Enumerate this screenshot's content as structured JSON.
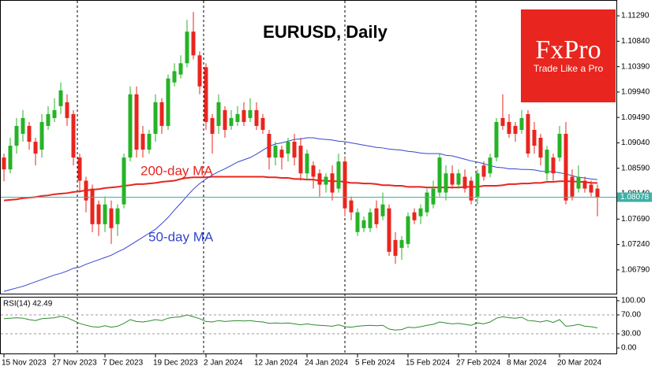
{
  "logo": {
    "name": "FxPro",
    "tagline": "Trade Like a Pro"
  },
  "chart_data": [
    {
      "type": "candlestick",
      "title": "EURUSD, Daily",
      "categories": [
        "15 Nov 2023",
        null,
        null,
        null,
        null,
        null,
        null,
        null,
        "27 Nov 2023",
        null,
        null,
        null,
        null,
        null,
        null,
        null,
        "7 Dec 2023",
        null,
        null,
        null,
        null,
        null,
        null,
        null,
        "19 Dec 2023",
        null,
        null,
        null,
        null,
        null,
        null,
        null,
        "2 Jan 2024",
        null,
        null,
        null,
        null,
        null,
        null,
        null,
        "12 Jan 2024",
        null,
        null,
        null,
        null,
        null,
        null,
        null,
        "24 Jan 2024",
        null,
        null,
        null,
        null,
        null,
        null,
        null,
        "5 Feb 2024",
        null,
        null,
        null,
        null,
        null,
        null,
        null,
        "15 Feb 2024",
        null,
        null,
        null,
        null,
        null,
        null,
        null,
        "27 Feb 2024",
        null,
        null,
        null,
        null,
        null,
        null,
        null,
        "8 Mar 2024",
        null,
        null,
        null,
        null,
        null,
        null,
        null,
        "20 Mar 2024",
        null,
        null,
        null,
        null,
        null,
        null
      ],
      "open": [
        1.0878,
        1.0857,
        1.0899,
        1.092,
        1.0934,
        1.0906,
        1.0892,
        1.0934,
        1.0948,
        1.0969,
        1.0976,
        1.0955,
        1.0878,
        1.0837,
        1.0823,
        1.0795,
        1.076,
        1.0788,
        1.076,
        1.0795,
        1.0878,
        1.099,
        1.092,
        1.0892,
        1.092,
        1.0976,
        1.0934,
        1.1011,
        1.1025,
        1.1045,
        1.1101,
        1.1059,
        1.1038,
        1.0948,
        1.0934,
        1.0962,
        1.0934,
        1.0941,
        1.0962,
        1.0948,
        1.0962,
        1.0948,
        1.092,
        1.0878,
        1.0892,
        1.0885,
        1.0906,
        1.0899,
        1.085,
        1.0864,
        1.085,
        1.083,
        1.085,
        1.0823,
        1.0871,
        1.0802,
        1.0746,
        1.0753,
        1.0753,
        1.0788,
        1.0774,
        1.0788,
        1.0732,
        1.0718,
        1.0725,
        1.0781,
        1.0774,
        1.0781,
        1.0795,
        1.0816,
        1.0816,
        1.085,
        1.083,
        1.0844,
        1.0837,
        1.0809,
        1.0864,
        1.085,
        1.0878,
        1.0948,
        1.0941,
        1.0934,
        1.0927,
        1.0955,
        1.0927,
        1.0913,
        1.085,
        1.0878,
        1.0878,
        1.092,
        1.0844,
        1.0823,
        1.0837,
        1.083,
        1.0823
      ],
      "high": [
        1.0885,
        1.0913,
        1.0948,
        1.0962,
        1.0941,
        1.0913,
        1.0955,
        1.0969,
        1.0983,
        1.1011,
        1.099,
        1.0962,
        1.0885,
        1.0844,
        1.083,
        1.0802,
        1.0809,
        1.0802,
        1.0795,
        1.0885,
        1.1004,
        1.1004,
        1.0934,
        1.0927,
        1.099,
        1.0983,
        1.1025,
        1.1045,
        1.1059,
        1.1122,
        1.1136,
        1.1066,
        1.1045,
        1.0955,
        1.099,
        1.0969,
        1.0962,
        1.0969,
        1.0976,
        1.0983,
        1.0976,
        1.0955,
        1.0927,
        1.0906,
        1.0899,
        1.0913,
        1.092,
        1.0913,
        1.0892,
        1.0871,
        1.0857,
        1.085,
        1.0864,
        1.0885,
        1.0878,
        1.0809,
        1.0788,
        1.0774,
        1.0788,
        1.0802,
        1.0816,
        1.0795,
        1.0746,
        1.0739,
        1.0781,
        1.0788,
        1.0795,
        1.0823,
        1.0837,
        1.0885,
        1.0864,
        1.0864,
        1.0857,
        1.0857,
        1.0844,
        1.0857,
        1.0871,
        1.0885,
        1.0948,
        1.099,
        1.0955,
        1.0941,
        1.0962,
        1.0962,
        1.0941,
        1.092,
        1.0899,
        1.0885,
        1.0934,
        1.0941,
        1.0857,
        1.0864,
        1.0844,
        1.0837,
        1.083
      ],
      "low": [
        1.0836,
        1.085,
        1.0885,
        1.0906,
        1.0892,
        1.0864,
        1.0878,
        1.0927,
        1.0941,
        1.0955,
        1.0934,
        1.0864,
        1.0816,
        1.0781,
        1.0746,
        1.0739,
        1.0746,
        1.0725,
        1.0739,
        1.0788,
        1.0871,
        1.0878,
        1.0878,
        1.0885,
        1.0906,
        1.092,
        1.0927,
        1.1004,
        1.1018,
        1.1038,
        1.1052,
        1.099,
        1.0927,
        1.0885,
        1.092,
        1.0913,
        1.0927,
        1.0934,
        1.0934,
        1.0941,
        1.0927,
        1.092,
        1.0857,
        1.0864,
        1.0857,
        1.0871,
        1.0864,
        1.0837,
        1.0837,
        1.0823,
        1.0809,
        1.0816,
        1.0802,
        1.0816,
        1.0774,
        1.0767,
        1.0739,
        1.0746,
        1.0746,
        1.0753,
        1.0767,
        1.0704,
        1.069,
        1.0697,
        1.0718,
        1.076,
        1.076,
        1.0774,
        1.0788,
        1.0809,
        1.0802,
        1.0823,
        1.0823,
        1.0816,
        1.0795,
        1.0795,
        1.0837,
        1.0843,
        1.0871,
        1.0927,
        1.0913,
        1.0906,
        1.092,
        1.0878,
        1.0885,
        1.0864,
        1.0837,
        1.0837,
        1.0871,
        1.0795,
        1.0802,
        1.0816,
        1.0816,
        1.0809,
        1.0774
      ],
      "close": [
        1.0857,
        1.0899,
        1.0934,
        1.0948,
        1.0906,
        1.0885,
        1.0941,
        1.0955,
        1.0962,
        1.0997,
        1.0948,
        1.0878,
        1.0837,
        1.0802,
        1.076,
        1.076,
        1.0795,
        1.0753,
        1.0788,
        1.0878,
        1.099,
        1.0892,
        1.0892,
        1.092,
        1.0976,
        1.0934,
        1.1018,
        1.1031,
        1.1045,
        1.1101,
        1.1059,
        1.1004,
        1.0941,
        1.092,
        1.0976,
        1.0927,
        1.0948,
        1.0955,
        1.0941,
        1.0962,
        1.0934,
        1.0927,
        1.0878,
        1.0899,
        1.0878,
        1.0906,
        1.0878,
        1.085,
        1.0885,
        1.0844,
        1.083,
        1.0844,
        1.0816,
        1.0871,
        1.0788,
        1.0781,
        1.0781,
        1.0767,
        1.0781,
        1.076,
        1.0795,
        1.0711,
        1.0704,
        1.0732,
        1.0774,
        1.0767,
        1.0788,
        1.0816,
        1.0823,
        1.0878,
        1.085,
        1.083,
        1.085,
        1.0823,
        1.0802,
        1.085,
        1.0844,
        1.0878,
        1.0941,
        1.0934,
        1.092,
        1.092,
        1.0948,
        1.0885,
        1.0899,
        1.0878,
        1.0892,
        1.085,
        1.092,
        1.0802,
        1.0809,
        1.0844,
        1.0823,
        1.0816,
        1.0808
      ],
      "up_color": "#26b326",
      "down_color": "#e8251e",
      "lines": [
        {
          "name": "200-day MA",
          "color": "#e8251e",
          "values": [
            1.0802,
            1.0803,
            1.0804,
            1.0806,
            1.0807,
            1.0808,
            1.081,
            1.0811,
            1.0813,
            1.0814,
            1.0815,
            1.0817,
            1.0818,
            1.082,
            1.0821,
            1.0822,
            1.0824,
            1.0825,
            1.0826,
            1.0828,
            1.0829,
            1.0831,
            1.0831,
            1.0832,
            1.0833,
            1.0835,
            1.0836,
            1.0837,
            1.084,
            1.0842,
            1.0843,
            1.0843,
            1.0843,
            1.0844,
            1.0844,
            1.0844,
            1.0844,
            1.0844,
            1.0844,
            1.0844,
            1.0844,
            1.0844,
            1.0843,
            1.0843,
            1.0842,
            1.0842,
            1.084,
            1.084,
            1.0839,
            1.0839,
            1.0837,
            1.0837,
            1.0836,
            1.0836,
            1.0835,
            1.0833,
            1.0833,
            1.0832,
            1.0832,
            1.0831,
            1.0829,
            1.0829,
            1.0828,
            1.0828,
            1.0826,
            1.0826,
            1.0826,
            1.0825,
            1.0825,
            1.0825,
            1.0825,
            1.0825,
            1.0825,
            1.0826,
            1.0826,
            1.0826,
            1.0828,
            1.0828,
            1.0828,
            1.0829,
            1.0831,
            1.0831,
            1.0832,
            1.0832,
            1.0833,
            1.0833,
            1.0835,
            1.0835,
            1.0836,
            1.0836,
            1.0836,
            1.0835,
            1.0835,
            1.0833,
            1.0833
          ]
        },
        {
          "name": "50-day MA",
          "color": "#3346cc",
          "values": [
            1.0641,
            1.0644,
            1.0647,
            1.065,
            1.0654,
            1.0658,
            1.0662,
            1.0666,
            1.067,
            1.0673,
            1.0677,
            1.0682,
            1.0684,
            1.0689,
            1.0693,
            1.0697,
            1.0701,
            1.0705,
            1.0711,
            1.0716,
            1.0723,
            1.073,
            1.0737,
            1.0744,
            1.0751,
            1.0761,
            1.0772,
            1.0785,
            1.0797,
            1.081,
            1.0822,
            1.0832,
            1.084,
            1.0847,
            1.0853,
            1.0858,
            1.0864,
            1.087,
            1.0874,
            1.0878,
            1.0884,
            1.0891,
            1.0898,
            1.0902,
            1.0904,
            1.0907,
            1.091,
            1.0911,
            1.0913,
            1.0913,
            1.0911,
            1.091,
            1.0909,
            1.0907,
            1.0906,
            1.0904,
            1.0902,
            1.09,
            1.0898,
            1.0896,
            1.0895,
            1.0893,
            1.0892,
            1.0891,
            1.0889,
            1.0888,
            1.0886,
            1.0885,
            1.0885,
            1.0885,
            1.0882,
            1.0881,
            1.0878,
            1.0875,
            1.0872,
            1.087,
            1.0867,
            1.0864,
            1.0861,
            1.086,
            1.0858,
            1.0858,
            1.0857,
            1.0857,
            1.0856,
            1.0854,
            1.0853,
            1.0853,
            1.0851,
            1.0849,
            1.0846,
            1.0843,
            1.0842,
            1.084,
            1.0839
          ]
        }
      ],
      "bid": 1.08078,
      "bid_color": "#3fb0a6",
      "ylim": [
        1.0637,
        1.1157
      ],
      "yticks": [
        {
          "value": 1.1129,
          "label": "1.11290"
        },
        {
          "value": 1.1084,
          "label": "1.10840"
        },
        {
          "value": 1.1039,
          "label": "1.10390"
        },
        {
          "value": 1.0994,
          "label": "1.09940"
        },
        {
          "value": 1.0949,
          "label": "1.09490"
        },
        {
          "value": 1.0904,
          "label": "1.09040"
        },
        {
          "value": 1.0859,
          "label": "1.08590"
        },
        {
          "value": 1.0814,
          "label": "1.08140"
        },
        {
          "value": 1.0769,
          "label": "1.07690"
        },
        {
          "value": 1.0724,
          "label": "1.07240"
        },
        {
          "value": 1.0679,
          "label": "1.06790"
        }
      ]
    },
    {
      "type": "line",
      "title": "RSI(14) 42.49",
      "color": "#2e8b2e",
      "values": [
        62,
        63,
        64,
        63,
        60,
        58,
        62,
        63,
        64,
        67,
        64,
        58,
        52,
        48,
        45,
        44,
        47,
        44,
        46,
        52,
        60,
        56,
        55,
        57,
        60,
        58,
        63,
        65,
        66,
        70,
        66,
        62,
        56,
        55,
        58,
        56,
        57,
        58,
        57,
        58,
        56,
        55,
        52,
        53,
        52,
        53,
        51,
        49,
        51,
        49,
        48,
        47,
        46,
        49,
        45,
        44,
        46,
        47,
        48,
        47,
        48,
        40,
        38,
        39,
        44,
        43,
        45,
        48,
        50,
        55,
        53,
        51,
        52,
        50,
        48,
        53,
        51,
        55,
        63,
        66,
        64,
        63,
        65,
        58,
        57,
        55,
        58,
        54,
        60,
        46,
        47,
        50,
        46,
        45,
        42.49
      ],
      "levels": [
        70,
        30
      ],
      "ylim": [
        -13.3,
        108.3
      ],
      "yticks": [
        {
          "value": 100,
          "label": "100.00"
        },
        {
          "value": 70,
          "label": "70.00"
        },
        {
          "value": 30,
          "label": "30.00"
        },
        {
          "value": 0,
          "label": "0.00"
        }
      ]
    }
  ]
}
